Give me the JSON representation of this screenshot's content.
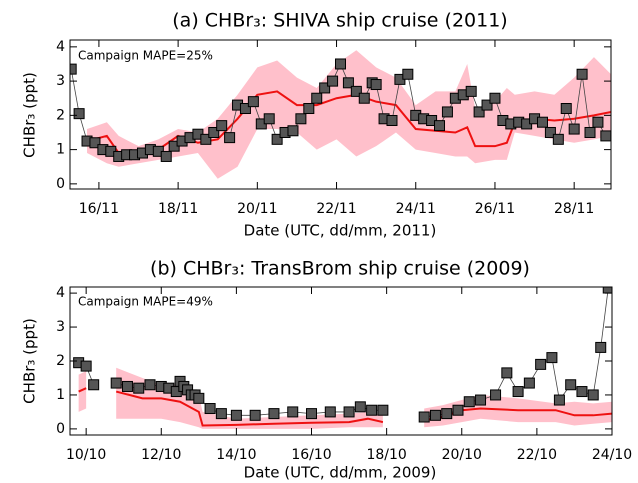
{
  "chart_data": [
    {
      "type": "line",
      "title": "(a) CHBr₃: SHIVA ship cruise (2011)",
      "xlabel": "Date (UTC, dd/mm, 2011)",
      "ylabel": "CHBr₃ (ppt)",
      "annotation": "Campaign MAPE=25%",
      "xlim": [
        15.27,
        28.93
      ],
      "ylim": [
        -0.15,
        4.2
      ],
      "xticks": [
        {
          "value": 16,
          "label": "16/11"
        },
        {
          "value": 18,
          "label": "18/11"
        },
        {
          "value": 20,
          "label": "20/11"
        },
        {
          "value": 22,
          "label": "22/11"
        },
        {
          "value": 24,
          "label": "24/11"
        },
        {
          "value": 26,
          "label": "26/11"
        },
        {
          "value": 28,
          "label": "28/11"
        }
      ],
      "yticks": [
        0,
        1,
        2,
        3,
        4
      ],
      "band": {
        "color": "#ffc0cb",
        "x": [
          15.7,
          16.2,
          16.5,
          17,
          17.5,
          18,
          18.5,
          19,
          19.5,
          20,
          20.5,
          21,
          21.5,
          22,
          22.5,
          23,
          23.5,
          24,
          24.5,
          25,
          25.3,
          25.5,
          26,
          26.3,
          26.5,
          27,
          27.5,
          28,
          28.5,
          28.93
        ],
        "low": [
          0.9,
          0.6,
          0.5,
          0.6,
          0.7,
          0.8,
          0.9,
          0.15,
          0.5,
          1.6,
          1.6,
          1.5,
          1.0,
          1.3,
          0.8,
          1.1,
          1.5,
          1.0,
          0.9,
          0.8,
          0.8,
          0.6,
          0.7,
          0.7,
          1.5,
          1.4,
          1.3,
          1.2,
          1.3,
          1.4
        ],
        "high": [
          1.6,
          1.8,
          1.4,
          1.1,
          1.3,
          1.6,
          1.5,
          1.9,
          2.6,
          3.4,
          3.6,
          3.1,
          2.8,
          3.5,
          3.9,
          3.4,
          3.1,
          2.3,
          2.7,
          2.7,
          3.5,
          2.2,
          2.4,
          2.8,
          2.6,
          2.7,
          2.6,
          3.1,
          3.7,
          3.2
        ]
      },
      "series": [
        {
          "color": "#ee1111",
          "style": "line",
          "x": [
            15.7,
            16.2,
            16.5,
            17,
            17.5,
            18,
            18.5,
            19,
            19.5,
            20,
            20.5,
            21,
            21.5,
            22,
            22.5,
            23,
            23.5,
            24,
            24.5,
            25,
            25.3,
            25.5,
            26,
            26.3,
            26.5,
            27,
            27.5,
            28,
            28.5,
            28.93
          ],
          "values": [
            1.25,
            1.4,
            0.9,
            0.95,
            1.0,
            1.4,
            1.2,
            1.3,
            1.9,
            2.6,
            2.7,
            2.3,
            2.3,
            2.5,
            2.6,
            2.4,
            2.3,
            1.6,
            1.55,
            1.5,
            1.65,
            1.1,
            1.1,
            1.2,
            1.8,
            1.9,
            1.85,
            1.9,
            2.0,
            2.1
          ]
        },
        {
          "color": "#555555",
          "style": "markers",
          "x": [
            15.3,
            15.5,
            15.7,
            15.9,
            16.1,
            16.3,
            16.5,
            16.7,
            16.9,
            17.1,
            17.3,
            17.5,
            17.7,
            17.9,
            18.1,
            18.3,
            18.5,
            18.7,
            18.9,
            19.1,
            19.3,
            19.5,
            19.7,
            19.9,
            20.1,
            20.3,
            20.5,
            20.7,
            20.9,
            21.1,
            21.3,
            21.5,
            21.7,
            21.9,
            22.1,
            22.3,
            22.5,
            22.7,
            22.9,
            23.0,
            23.2,
            23.4,
            23.6,
            23.8,
            24.0,
            24.2,
            24.4,
            24.6,
            24.8,
            25.0,
            25.2,
            25.4,
            25.6,
            25.8,
            26.0,
            26.2,
            26.4,
            26.6,
            26.8,
            27.0,
            27.2,
            27.4,
            27.6,
            27.8,
            28.0,
            28.2,
            28.4,
            28.6,
            28.8
          ],
          "values": [
            3.35,
            2.05,
            1.25,
            1.2,
            1.0,
            0.95,
            0.8,
            0.85,
            0.85,
            0.9,
            1.0,
            0.95,
            0.8,
            1.1,
            1.25,
            1.35,
            1.45,
            1.3,
            1.5,
            1.7,
            1.35,
            2.3,
            2.2,
            2.4,
            1.75,
            1.9,
            1.3,
            1.5,
            1.55,
            1.9,
            2.2,
            2.5,
            2.8,
            3.0,
            3.5,
            2.95,
            2.7,
            2.5,
            2.95,
            2.9,
            1.9,
            1.85,
            3.05,
            3.2,
            2.0,
            1.9,
            1.85,
            1.7,
            2.1,
            2.5,
            2.6,
            2.7,
            2.1,
            2.3,
            2.5,
            1.85,
            1.75,
            1.8,
            1.75,
            1.9,
            1.8,
            1.5,
            1.3,
            2.2,
            1.6,
            3.2,
            1.5,
            1.8,
            1.4
          ]
        }
      ]
    },
    {
      "type": "line",
      "title": "(b) CHBr₃: TransBrom ship cruise (2009)",
      "xlabel": "Date (UTC, dd/mm, 2009)",
      "ylabel": "CHBr₃ (ppt)",
      "annotation": "Campaign MAPE=49%",
      "xlim": [
        9.57,
        24
      ],
      "ylim": [
        -0.18,
        4.18
      ],
      "xticks": [
        {
          "value": 10,
          "label": "10/10"
        },
        {
          "value": 12,
          "label": "12/10"
        },
        {
          "value": 14,
          "label": "14/10"
        },
        {
          "value": 16,
          "label": "16/10"
        },
        {
          "value": 18,
          "label": "18/10"
        },
        {
          "value": 20,
          "label": "20/10"
        },
        {
          "value": 22,
          "label": "22/10"
        },
        {
          "value": 24,
          "label": "24/10"
        }
      ],
      "yticks": [
        0,
        1,
        2,
        3,
        4
      ],
      "band": {
        "color": "#ffc0cb",
        "x": [
          9.8,
          10.0,
          10.5,
          10.8,
          11.5,
          12.0,
          12.5,
          13.0,
          13.1,
          14.0,
          15.0,
          16.0,
          17.0,
          17.5,
          17.9,
          18.5,
          19.0,
          19.5,
          20.0,
          20.5,
          21.5,
          22.5,
          23.0,
          23.5,
          24
        ],
        "low": [
          0.5,
          0.6,
          null,
          0.3,
          0.3,
          0.3,
          0.2,
          0.05,
          0.0,
          0.0,
          0.0,
          0.0,
          0.05,
          0.05,
          0.05,
          null,
          0.05,
          0.1,
          0.2,
          0.3,
          0.2,
          0.2,
          0.1,
          0.15,
          0.2
        ],
        "high": [
          1.6,
          1.7,
          null,
          1.8,
          1.5,
          1.3,
          1.3,
          1.0,
          0.5,
          0.3,
          0.35,
          0.4,
          0.45,
          0.5,
          0.4,
          null,
          0.6,
          0.7,
          0.85,
          1.0,
          0.9,
          0.75,
          0.8,
          0.75,
          0.8
        ]
      },
      "series": [
        {
          "color": "#ee1111",
          "style": "line",
          "x": [
            9.8,
            10.0,
            10.5,
            10.8,
            11.5,
            12.0,
            12.5,
            13.0,
            13.1,
            14.0,
            15.0,
            16.0,
            17.0,
            17.5,
            17.9,
            18.5,
            19.0,
            19.5,
            20.0,
            20.5,
            21.5,
            22.5,
            23.0,
            23.5,
            24
          ],
          "values": [
            1.1,
            1.2,
            null,
            1.1,
            0.9,
            0.9,
            0.8,
            0.5,
            0.1,
            0.12,
            0.15,
            0.18,
            0.2,
            0.3,
            0.2,
            null,
            0.25,
            0.35,
            0.55,
            0.6,
            0.55,
            0.55,
            0.4,
            0.4,
            0.45
          ]
        },
        {
          "color": "#555555",
          "style": "markers",
          "x": [
            9.8,
            10.0,
            10.2,
            10.5,
            10.8,
            11.1,
            11.4,
            11.7,
            12.0,
            12.2,
            12.4,
            12.5,
            12.6,
            12.7,
            12.8,
            12.9,
            13.0,
            13.3,
            13.6,
            14.0,
            14.5,
            15.0,
            15.5,
            16.0,
            16.5,
            17.0,
            17.3,
            17.6,
            17.9,
            18.5,
            19.0,
            19.3,
            19.6,
            19.9,
            20.2,
            20.5,
            20.9,
            21.2,
            21.5,
            21.8,
            22.1,
            22.4,
            22.6,
            22.9,
            23.2,
            23.5,
            23.7,
            23.9
          ],
          "values": [
            1.95,
            1.85,
            1.3,
            null,
            1.35,
            1.25,
            1.2,
            1.3,
            1.25,
            1.2,
            1.1,
            1.4,
            1.25,
            1.15,
            1.0,
            1.0,
            0.9,
            0.6,
            0.45,
            0.4,
            0.4,
            0.45,
            0.5,
            0.45,
            0.5,
            0.5,
            0.65,
            0.55,
            0.55,
            null,
            0.35,
            0.4,
            0.45,
            0.55,
            0.8,
            0.85,
            1.0,
            1.65,
            1.1,
            1.35,
            1.9,
            2.1,
            0.85,
            1.3,
            1.1,
            1.0,
            2.4,
            4.15
          ]
        }
      ]
    }
  ]
}
